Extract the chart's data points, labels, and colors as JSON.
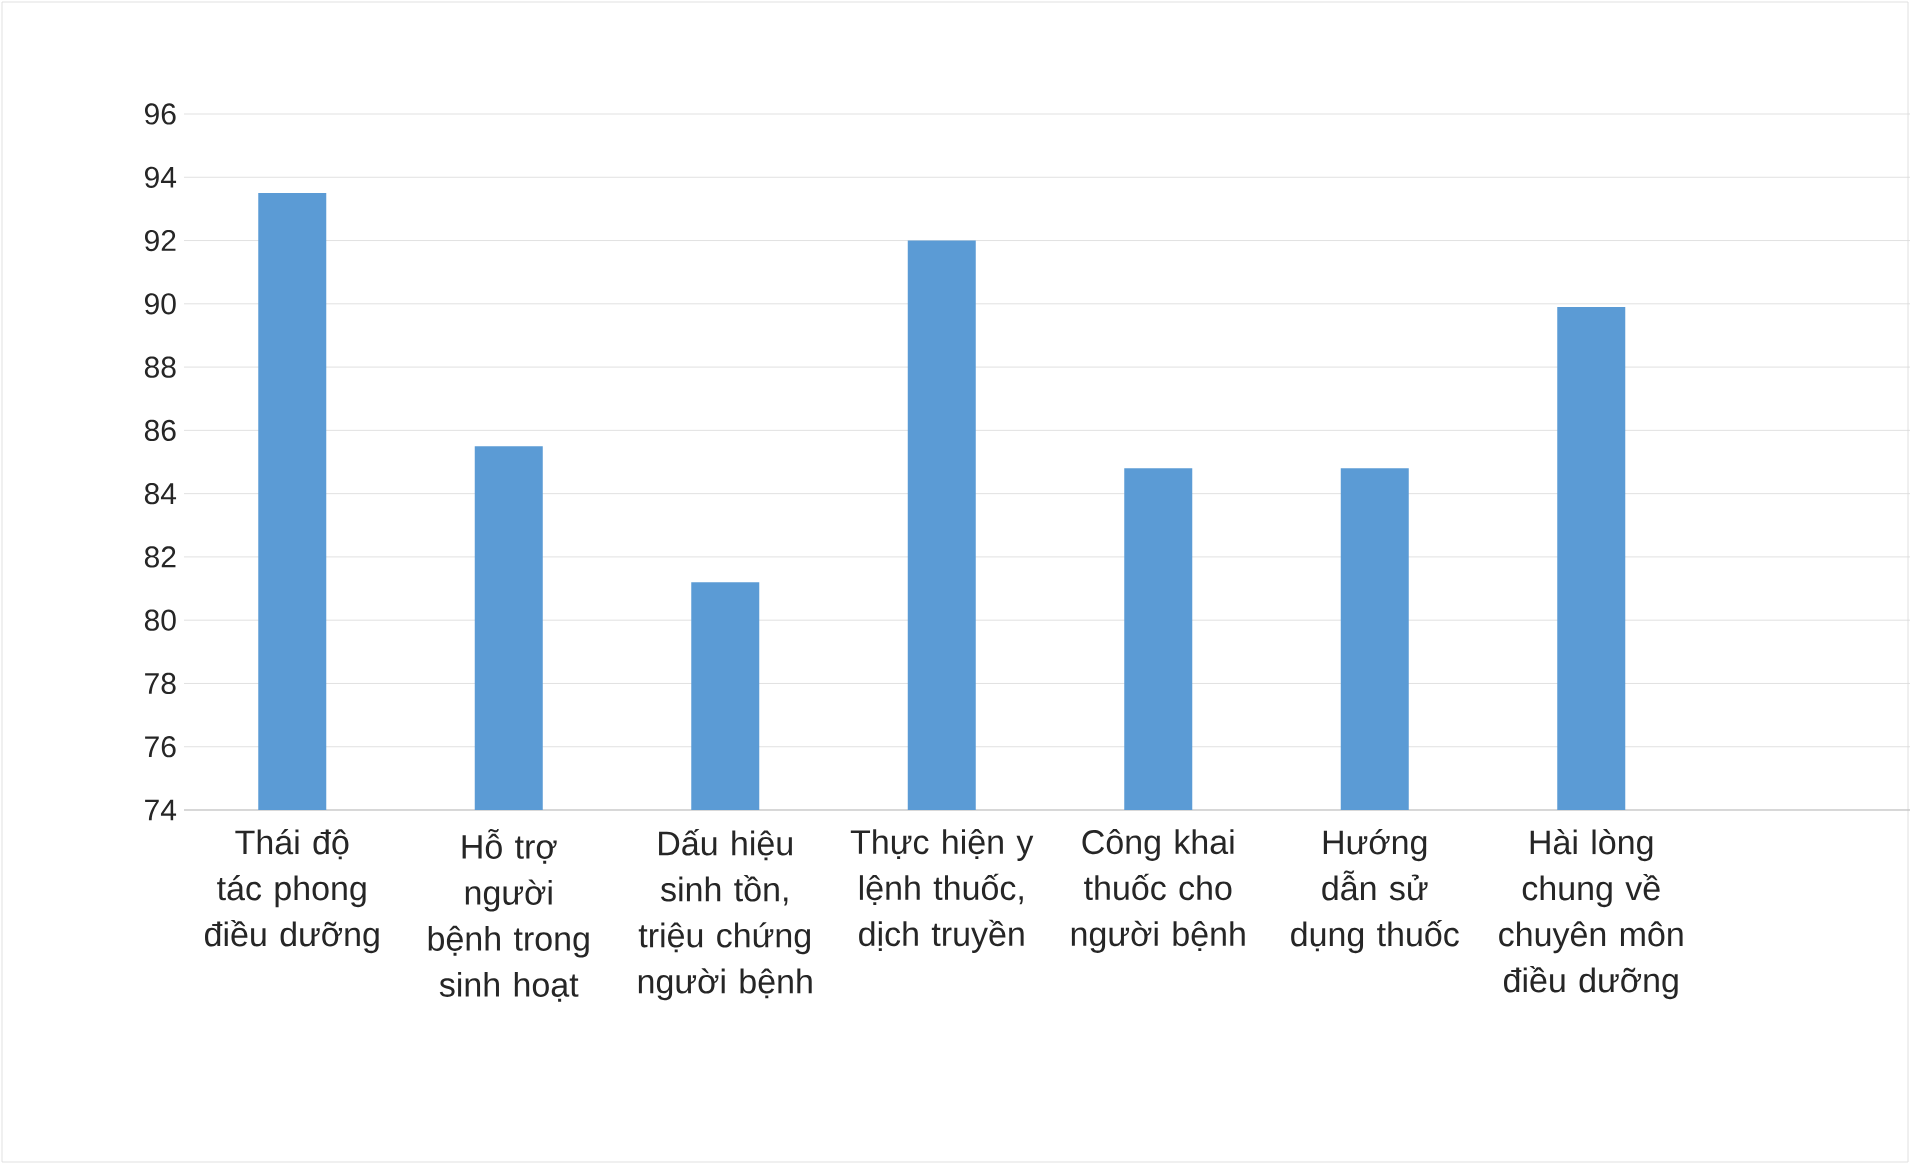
{
  "chart_data": {
    "type": "bar",
    "categories": [
      "Thái độ tác phong điều dưỡng",
      "Hỗ trợ người bệnh trong sinh hoạt",
      "Dấu hiệu sinh tồn, triệu chứng người bệnh",
      "Thực hiện y lệnh thuốc, dịch truyền",
      "Công khai thuốc cho người bệnh",
      "Hướng dẫn sử dụng thuốc",
      "Hài lòng chung về chuyên môn điều dưỡng",
      null
    ],
    "values": [
      93.5,
      85.5,
      81.2,
      92.0,
      84.8,
      84.8,
      89.9,
      null
    ],
    "color": "#5b9bd5",
    "ylim": [
      74,
      96
    ],
    "yticks": [
      74,
      76,
      78,
      80,
      82,
      84,
      86,
      88,
      90,
      92,
      94,
      96
    ],
    "grid": "y"
  }
}
